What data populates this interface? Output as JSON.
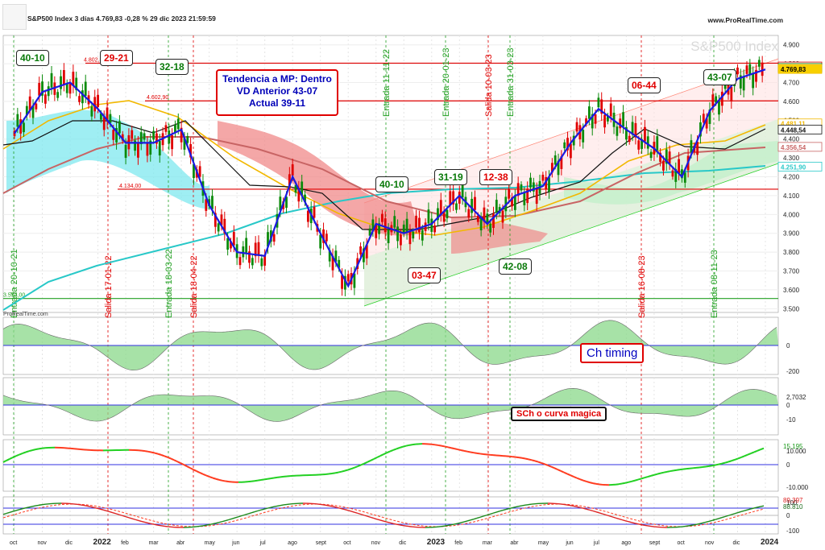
{
  "header": {
    "title": "S&P500 Index 3 días 4.769,83 -0,28 % 29 dic 2023 21:59:59",
    "site": "www.ProRealTime.com",
    "watermark": "S&P500 Index",
    "footer_brand": "ProRealTime.com"
  },
  "colors": {
    "candle_up": "#0a8a0a",
    "candle_down": "#e00000",
    "fast_ma": "#1a1ae0",
    "black_ma": "#111111",
    "yellow_ma": "#f2b800",
    "brown_ma": "#c86464",
    "teal_ma": "#28c8c8",
    "resistance": "#e00000",
    "support": "#22a022",
    "oscillator_up": "#8ad88a",
    "oscillator_down": "#e08a8a",
    "green_line": "#22d022",
    "red_line": "#ff3b1f",
    "zero_line": "#3030e0"
  },
  "labels": {
    "box_40_10_a": "40-10",
    "box_29_21": "29-21",
    "box_32_18": "32-18",
    "box_40_10_b": "40-10",
    "box_31_19": "31-19",
    "box_12_38": "12-38",
    "box_03_47": "03-47",
    "box_42_08": "42-08",
    "box_06_44": "06-44",
    "box_43_07": "43-07",
    "trend_line1": "Tendencia a MP: Dentro",
    "trend_line2": "VD Anterior 43-07",
    "trend_line3": "Actual 39-11",
    "ch_timing": "Ch timing",
    "sch": "SCh o curva magica"
  },
  "level_labels": {
    "l4802": "4.802,80",
    "l4602": "4.602,90",
    "l4134": "4.134,00",
    "l3554": "3.554,00"
  },
  "signals": [
    {
      "date": "20-10-21",
      "type": "Entrada"
    },
    {
      "date": "17-01-22",
      "type": "Salida"
    },
    {
      "date": "18-03-22",
      "type": "Entrada"
    },
    {
      "date": "18-04-22",
      "type": "Salida"
    },
    {
      "date": "11-11-22",
      "type": "Entrada"
    },
    {
      "date": "20-01-23",
      "type": "Entrada"
    },
    {
      "date": "10-03-23",
      "type": "Salida"
    },
    {
      "date": "31-03-23",
      "type": "Entrada"
    },
    {
      "date": "16-08-23",
      "type": "Salida"
    },
    {
      "date": "08-11-23",
      "type": "Entrada"
    }
  ],
  "chart_data": {
    "type": "line",
    "x_axis_labels": [
      "oct",
      "nov",
      "dic",
      "2022",
      "feb",
      "mar",
      "abr",
      "may",
      "jun",
      "jul",
      "ago",
      "sept",
      "oct",
      "nov",
      "dic",
      "2023",
      "feb",
      "mar",
      "abr",
      "may",
      "jun",
      "jul",
      "ago",
      "sept",
      "oct",
      "nov",
      "dic",
      "2024"
    ],
    "price_axis": {
      "ticks": [
        "4.900",
        "4.800",
        "4.700",
        "4.600",
        "4.500",
        "4.400",
        "4.300",
        "4.200",
        "4.100",
        "4.000",
        "3.900",
        "3.800",
        "3.700",
        "3.600",
        "3.500"
      ],
      "ylim": [
        3480,
        4950
      ]
    },
    "price_badges": {
      "p4783": "4.783,08",
      "p4775": "4.775,39",
      "p4769": "4.769,83",
      "p4481": "4.481,11",
      "p4448": "4.448,54",
      "p4356": "4.356,54",
      "p4251": "4.251,90"
    },
    "horizontal_levels": [
      4802.8,
      4602.9,
      4134.0,
      3554.0
    ],
    "price_series": {
      "name": "S&P500 Index",
      "months": [
        "2021-10",
        "2021-11",
        "2021-12",
        "2022-01",
        "2022-02",
        "2022-03",
        "2022-04",
        "2022-05",
        "2022-06",
        "2022-07",
        "2022-08",
        "2022-09",
        "2022-10",
        "2022-11",
        "2022-12",
        "2023-01",
        "2023-02",
        "2023-03",
        "2023-04",
        "2023-05",
        "2023-06",
        "2023-07",
        "2023-08",
        "2023-09",
        "2023-10",
        "2023-11",
        "2023-12",
        "2023-12-29"
      ],
      "values": [
        4430,
        4650,
        4700,
        4560,
        4380,
        4380,
        4450,
        4050,
        3800,
        3780,
        4200,
        3900,
        3620,
        3950,
        3900,
        3950,
        4100,
        3950,
        4100,
        4150,
        4380,
        4560,
        4450,
        4350,
        4200,
        4550,
        4720,
        4769.83
      ]
    },
    "panels": [
      {
        "name": "Ch timing",
        "ticks": [
          "0",
          "-200"
        ]
      },
      {
        "name": "SCh o curva magica",
        "ticks": [
          "2,7032",
          "0",
          "-10"
        ],
        "value": "2,7032"
      },
      {
        "name": "panel3",
        "ticks": [
          "10.000",
          "0",
          "-10.000"
        ],
        "value": "15.195"
      },
      {
        "name": "panel4",
        "ticks": [
          "100",
          "0",
          "-100"
        ],
        "values": [
          "89.397",
          "88.810"
        ]
      }
    ]
  }
}
